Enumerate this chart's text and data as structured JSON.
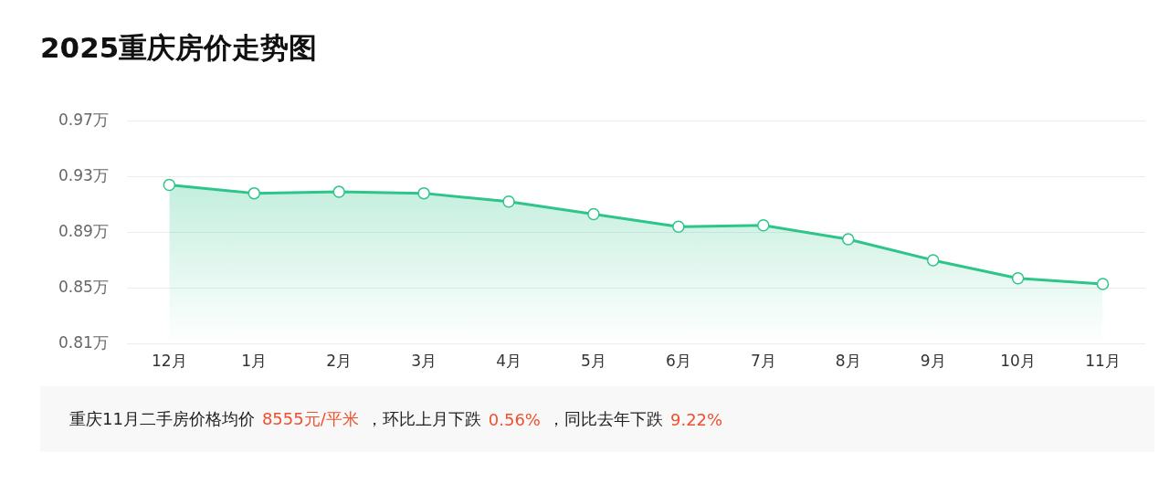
{
  "chart_data": {
    "type": "area",
    "title": "2025重庆房价走势图",
    "categories": [
      "12月",
      "1月",
      "2月",
      "3月",
      "4月",
      "5月",
      "6月",
      "7月",
      "8月",
      "9月",
      "10月",
      "11月"
    ],
    "series": [
      {
        "color": "#2ec58a",
        "values": [
          0.924,
          0.918,
          0.919,
          0.918,
          0.912,
          0.903,
          0.894,
          0.895,
          0.885,
          0.87,
          0.857,
          0.853
        ]
      }
    ],
    "ylim": [
      0.81,
      0.97
    ],
    "yticks": [
      {
        "value": 0.81,
        "label": "0.81万"
      },
      {
        "value": 0.85,
        "label": "0.85万"
      },
      {
        "value": 0.89,
        "label": "0.89万"
      },
      {
        "value": 0.93,
        "label": "0.93万"
      },
      {
        "value": 0.97,
        "label": "0.97万"
      }
    ],
    "grid": "y",
    "marker": "circle",
    "legend": false,
    "annotations": [
      "重庆11月二手房价格均价",
      "8555元/平米",
      "，环比上月下跌",
      "0.56%",
      "，同比去年下跌",
      "9.22%"
    ]
  }
}
